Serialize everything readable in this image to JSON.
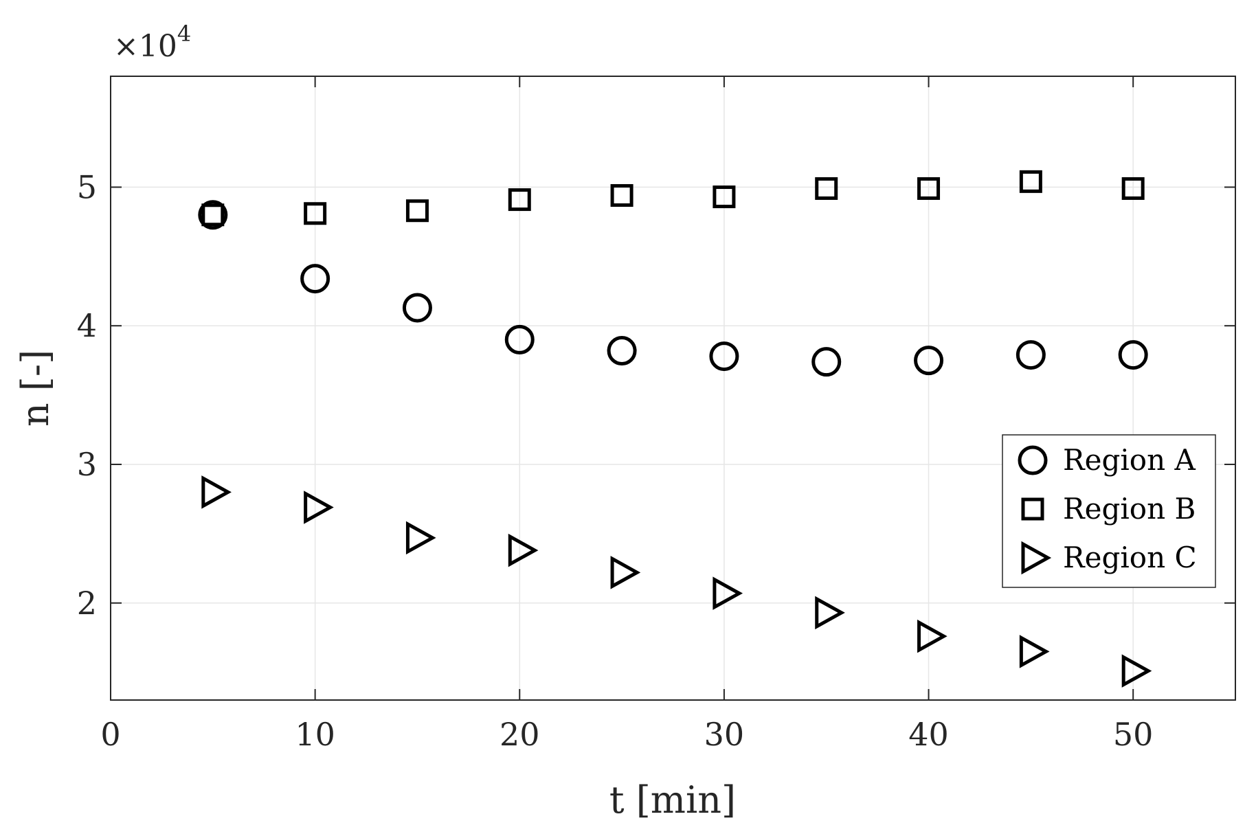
{
  "chart_data": {
    "type": "scatter",
    "xlabel": "t [min]",
    "ylabel": "n [-]",
    "y_exponent_label": "×10",
    "y_exponent_power": "4",
    "xlim": [
      0,
      55
    ],
    "ylim": [
      13000,
      58000
    ],
    "x_ticks": [
      0,
      10,
      20,
      30,
      40,
      50
    ],
    "x_tick_labels": [
      "0",
      "10",
      "20",
      "30",
      "40",
      "50"
    ],
    "y_ticks": [
      20000,
      30000,
      40000,
      50000
    ],
    "y_tick_labels": [
      "2",
      "3",
      "4",
      "5"
    ],
    "grid": true,
    "legend_position": "lower-right",
    "series": [
      {
        "name": "Region A",
        "marker": "circle",
        "x": [
          5,
          10,
          15,
          20,
          25,
          30,
          35,
          40,
          45,
          50
        ],
        "y": [
          48000,
          43400,
          41300,
          39000,
          38200,
          37800,
          37400,
          37500,
          37900,
          37900
        ]
      },
      {
        "name": "Region B",
        "marker": "square",
        "x": [
          5,
          10,
          15,
          20,
          25,
          30,
          35,
          40,
          45,
          50
        ],
        "y": [
          48000,
          48100,
          48300,
          49100,
          49400,
          49300,
          49900,
          49900,
          50400,
          49900
        ]
      },
      {
        "name": "Region C",
        "marker": "triangle-right",
        "x": [
          5,
          10,
          15,
          20,
          25,
          30,
          35,
          40,
          45,
          50
        ],
        "y": [
          28000,
          26900,
          24700,
          23800,
          22200,
          20700,
          19300,
          17600,
          16500,
          15100
        ]
      }
    ],
    "colors": {
      "marker": "#000000",
      "grid": "#e6e6e6",
      "axis": "#262626"
    }
  }
}
